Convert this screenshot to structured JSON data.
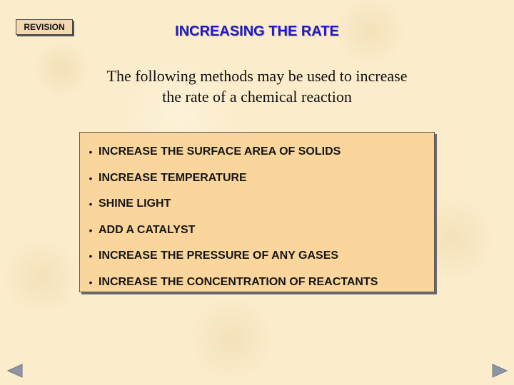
{
  "revision_button": {
    "label": "REVISION"
  },
  "slide": {
    "title": "INCREASING THE RATE",
    "intro": "The following methods may be used to increase the rate of a chemical reaction",
    "methods": [
      "INCREASE THE SURFACE AREA OF SOLIDS",
      "INCREASE TEMPERATURE",
      "SHINE LIGHT",
      "ADD A CATALYST",
      "INCREASE THE PRESSURE OF ANY GASES",
      "INCREASE THE CONCENTRATION OF REACTANTS"
    ],
    "bullet": "•"
  },
  "navigation": {
    "prev_icon": "triangle-left-icon",
    "next_icon": "triangle-right-icon"
  },
  "colors": {
    "background": "#fbeccb",
    "title": "#1f1ac4",
    "box_fill": "#fad59c",
    "arrow": "#8e96a6"
  }
}
